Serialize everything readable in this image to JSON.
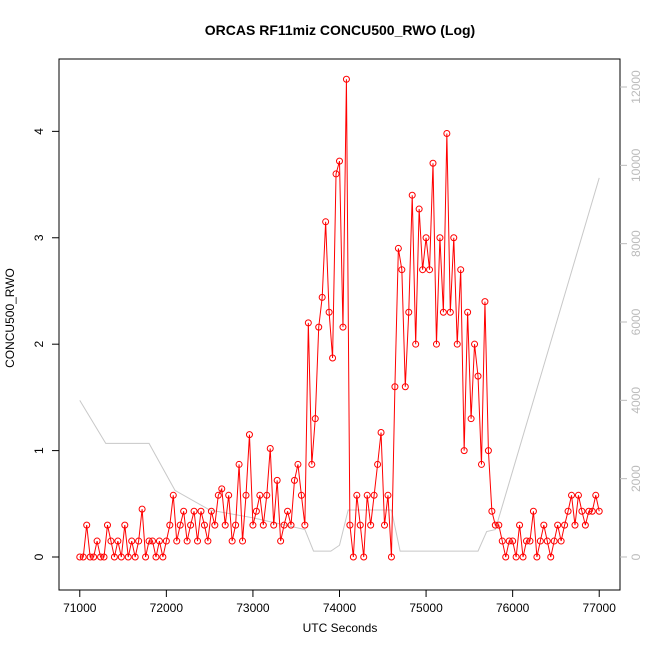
{
  "chart_data": {
    "type": "line",
    "title": "ORCAS RF11miz CONCU500_RWO (Log)",
    "xlabel": "UTC Seconds",
    "ylabel": "CONCU500_RWO",
    "xlim": [
      70760,
      77240
    ],
    "ylim": [
      -0.31,
      4.68
    ],
    "y2lim": [
      -843,
      12715
    ],
    "xticks": [
      71000,
      72000,
      73000,
      74000,
      75000,
      76000,
      77000
    ],
    "yticks": [
      0,
      1,
      2,
      3,
      4
    ],
    "y2ticks": [
      0,
      2000,
      4000,
      6000,
      8000,
      10000,
      12000
    ],
    "series": [
      {
        "color": "#ff0000",
        "marker": "circle",
        "x": [
          71000,
          71040,
          71080,
          71120,
          71160,
          71200,
          71240,
          71280,
          71320,
          71360,
          71400,
          71440,
          71480,
          71520,
          71560,
          71600,
          71640,
          71680,
          71720,
          71760,
          71800,
          71840,
          71880,
          71920,
          71960,
          72000,
          72040,
          72080,
          72120,
          72160,
          72200,
          72240,
          72280,
          72320,
          72360,
          72400,
          72440,
          72480,
          72520,
          72560,
          72600,
          72640,
          72680,
          72720,
          72760,
          72800,
          72840,
          72880,
          72920,
          72960,
          73000,
          73040,
          73080,
          73120,
          73160,
          73200,
          73240,
          73280,
          73320,
          73360,
          73400,
          73440,
          73480,
          73520,
          73560,
          73600,
          73640,
          73680,
          73720,
          73760,
          73800,
          73840,
          73880,
          73920,
          73960,
          74000,
          74040,
          74080,
          74120,
          74160,
          74200,
          74240,
          74280,
          74320,
          74360,
          74400,
          74440,
          74480,
          74520,
          74560,
          74600,
          74640,
          74680,
          74720,
          74760,
          74800,
          74840,
          74880,
          74920,
          74960,
          75000,
          75040,
          75080,
          75120,
          75160,
          75200,
          75240,
          75280,
          75320,
          75360,
          75400,
          75440,
          75480,
          75520,
          75560,
          75600,
          75640,
          75680,
          75720,
          75760,
          75800,
          75840,
          75880,
          75920,
          75960,
          76000,
          76040,
          76080,
          76120,
          76160,
          76200,
          76240,
          76280,
          76320,
          76360,
          76400,
          76440,
          76480,
          76520,
          76560,
          76600,
          76640,
          76680,
          76720,
          76760,
          76800,
          76840,
          76880,
          76920,
          76960,
          77000
        ],
        "values": [
          0,
          0,
          0.3,
          0,
          0,
          0.15,
          0,
          0,
          0.3,
          0.15,
          0,
          0.15,
          0,
          0.3,
          0,
          0.15,
          0,
          0.15,
          0.45,
          0,
          0.15,
          0.15,
          0,
          0.15,
          0,
          0.15,
          0.3,
          0.58,
          0.15,
          0.3,
          0.43,
          0.15,
          0.3,
          0.43,
          0.15,
          0.43,
          0.3,
          0.15,
          0.43,
          0.3,
          0.58,
          0.64,
          0.3,
          0.58,
          0.15,
          0.3,
          0.87,
          0.15,
          0.58,
          1.15,
          0.3,
          0.43,
          0.58,
          0.3,
          0.58,
          1.02,
          0.3,
          0.72,
          0.15,
          0.3,
          0.43,
          0.3,
          0.72,
          0.87,
          0.58,
          0.3,
          2.2,
          0.87,
          1.3,
          2.16,
          2.44,
          3.15,
          2.3,
          1.87,
          3.6,
          3.72,
          2.16,
          4.49,
          0.3,
          0,
          0.58,
          0.3,
          0,
          0.58,
          0.3,
          0.58,
          0.87,
          1.17,
          0.3,
          0.58,
          0,
          1.6,
          2.9,
          2.7,
          1.6,
          2.3,
          3.4,
          2.0,
          3.27,
          2.7,
          3.0,
          2.7,
          3.7,
          2.0,
          3.0,
          2.3,
          3.98,
          2.3,
          3.0,
          2.0,
          2.7,
          1.0,
          2.3,
          1.3,
          2.0,
          1.7,
          0.87,
          2.4,
          1.0,
          0.43,
          0.3,
          0.3,
          0.15,
          0,
          0.15,
          0.15,
          0,
          0.3,
          0,
          0.15,
          0.15,
          0.43,
          0,
          0.15,
          0.3,
          0.15,
          0,
          0.15,
          0.3,
          0.15,
          0.3,
          0.43,
          0.58,
          0.3,
          0.58,
          0.43,
          0.3,
          0.43,
          0.43,
          0.58,
          0.43
        ]
      },
      {
        "color": "#c8c8c8",
        "axis": "y2",
        "x": [
          71000,
          71300,
          71800,
          72100,
          72500,
          73000,
          73600,
          73700,
          73900,
          74000,
          74100,
          74600,
          74700,
          75600,
          75700,
          75800,
          77000
        ],
        "values": [
          4000,
          2900,
          2900,
          1700,
          1200,
          1000,
          700,
          150,
          150,
          300,
          1200,
          1200,
          150,
          150,
          650,
          700,
          9680
        ]
      }
    ]
  }
}
